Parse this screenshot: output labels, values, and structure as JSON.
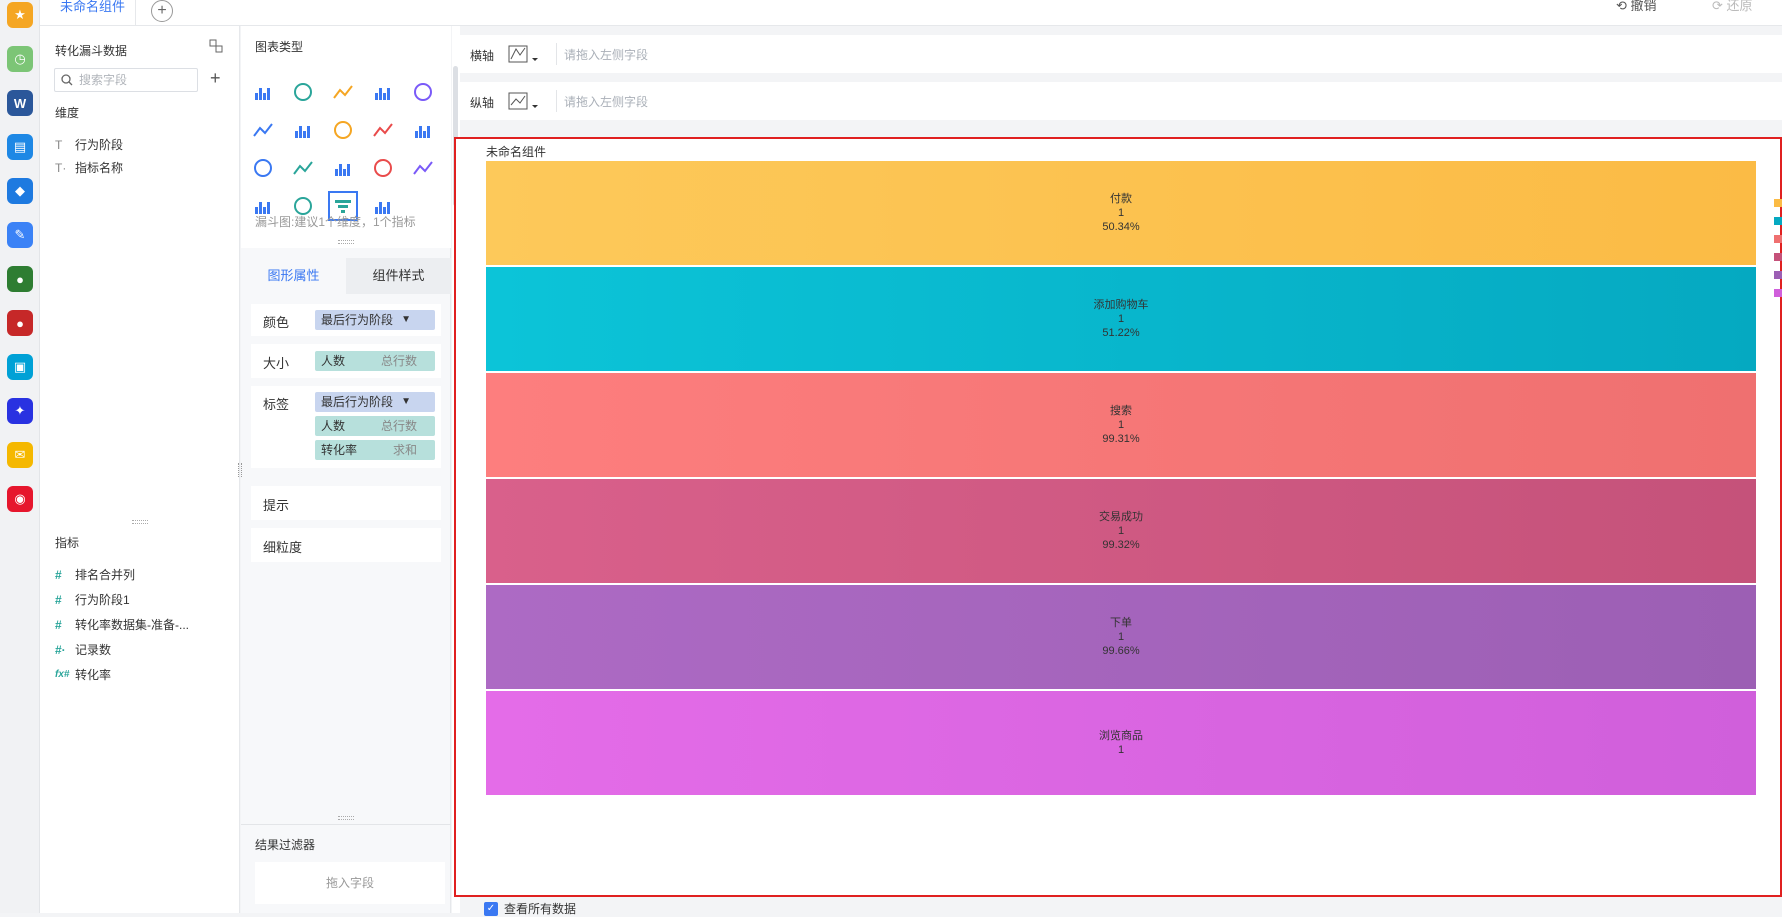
{
  "topbar": {
    "tab_label": "未命名组件",
    "add_tab": "+",
    "undo_label": "撤销",
    "redo_label": "还原",
    "undo_icon": "undo-icon",
    "redo_icon": "redo-icon"
  },
  "dock": {
    "icons": [
      "star-app-icon",
      "clock-app-icon",
      "word-app-icon",
      "blue-app-icon",
      "diamond-app-icon",
      "edit-app-icon",
      "game1-app-icon",
      "game2-app-icon",
      "bilibili-app-icon",
      "baidu-app-icon",
      "mail-app-icon",
      "weibo-app-icon"
    ],
    "colors": [
      "#f5a623",
      "#7cc576",
      "#2b579a",
      "#1e88e5",
      "#1e7ae0",
      "#3b82f6",
      "#2e7d32",
      "#c62828",
      "#00a1d6",
      "#2932e1",
      "#f5b800",
      "#e6162d"
    ]
  },
  "data_panel": {
    "title": "转化漏斗数据",
    "search_placeholder": "搜索字段",
    "dimensions_title": "维度",
    "dimensions": [
      {
        "icon": "T",
        "label": "行为阶段"
      },
      {
        "icon": "T·",
        "label": "指标名称"
      }
    ],
    "measures_title": "指标",
    "measures": [
      {
        "icon": "#",
        "label": "排名合并列"
      },
      {
        "icon": "#",
        "label": "行为阶段1"
      },
      {
        "icon": "#",
        "label": "转化率数据集-准备-..."
      },
      {
        "icon": "#·",
        "label": "记录数"
      },
      {
        "icon": "fx#",
        "label": "转化率"
      }
    ]
  },
  "config_panel": {
    "chart_types_title": "图表类型",
    "chart_hint": "漏斗图:建议1个维度，1个指标",
    "tab_shape": "图形属性",
    "tab_style": "组件样式",
    "color_label": "颜色",
    "color_field": "最后行为阶段",
    "size_label": "大小",
    "size_field": "人数",
    "size_agg": "总行数",
    "label_label": "标签",
    "label_fields": [
      {
        "name": "最后行为阶段",
        "agg": ""
      },
      {
        "name": "人数",
        "agg": "总行数"
      },
      {
        "name": "转化率",
        "agg": "求和"
      }
    ],
    "tooltip_label": "提示",
    "granularity_label": "细粒度",
    "filter_title": "结果过滤器",
    "filter_drop": "拖入字段",
    "filter_icon": "filter-icon"
  },
  "axes": {
    "x_label": "横轴",
    "y_label": "纵轴",
    "drop_hint": "请拖入左侧字段"
  },
  "chart": {
    "title": "未命名组件",
    "view_all": "查看所有数据"
  },
  "chart_data": {
    "type": "funnel",
    "stages": [
      {
        "name": "付款",
        "value": "1",
        "rate": "50.34%",
        "color": "#fdc95a",
        "color2": "#fbbb45"
      },
      {
        "name": "添加购物车",
        "value": "1",
        "rate": "51.22%",
        "color": "#0cc4d8",
        "color2": "#05a9c1"
      },
      {
        "name": "搜索",
        "value": "1",
        "rate": "99.31%",
        "color": "#fd7e7e",
        "color2": "#ef7070"
      },
      {
        "name": "交易成功",
        "value": "1",
        "rate": "99.32%",
        "color": "#d9608b",
        "color2": "#c5527a"
      },
      {
        "name": "下单",
        "value": "1",
        "rate": "99.66%",
        "color": "#ad6ac4",
        "color2": "#9c5fb4"
      },
      {
        "name": "浏览商品",
        "value": "1",
        "rate": "",
        "color": "#e46ce8",
        "color2": "#d05fdb"
      }
    ]
  }
}
